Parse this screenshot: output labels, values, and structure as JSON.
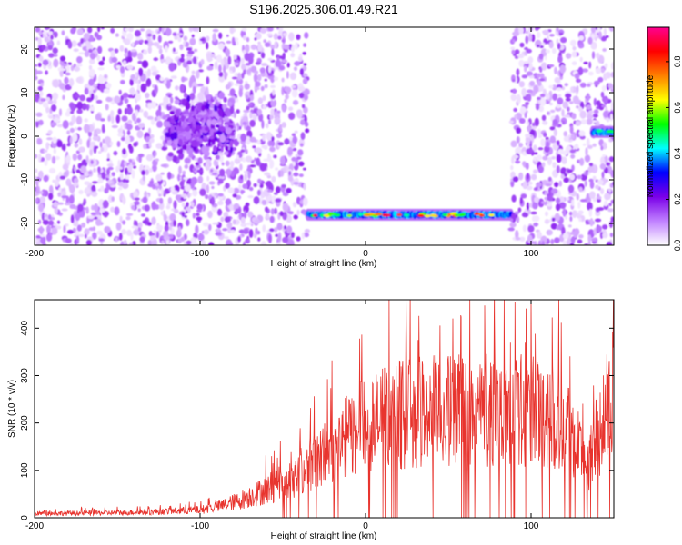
{
  "title": "S196.2025.306.01.49.R21",
  "chart_data": [
    {
      "type": "heatmap",
      "xlabel": "Height of straight line (km)",
      "ylabel": "Frequency (Hz)",
      "xlim": [
        -200,
        150
      ],
      "ylim": [
        -25,
        25
      ],
      "xticks": [
        -200,
        -100,
        0,
        100
      ],
      "yticks": [
        20,
        10,
        0,
        -10,
        -20
      ],
      "colorbar": {
        "label": "Normalized spectral amplitude",
        "range": [
          0,
          0.95
        ],
        "ticks": [
          0.0,
          0.2,
          0.4,
          0.6,
          0.8
        ],
        "colormap": [
          "#ffffff",
          "#c080ff",
          "#7a00e8",
          "#0000ff",
          "#00ffff",
          "#00ff00",
          "#ffff00",
          "#ff8000",
          "#ff0000",
          "#ff0090"
        ]
      },
      "regions": [
        {
          "desc": "scattered noise",
          "x": [
            -200,
            -35
          ],
          "freq": [
            -25,
            25
          ]
        },
        {
          "desc": "noise cluster",
          "x": [
            -120,
            -80
          ],
          "freq": [
            -5,
            10
          ]
        },
        {
          "desc": "signal band",
          "x": [
            -35,
            88
          ],
          "freq": [
            -20,
            -16
          ],
          "peak_amplitude": 0.9
        },
        {
          "desc": "scattered noise",
          "x": [
            88,
            150
          ],
          "freq": [
            -25,
            25
          ]
        },
        {
          "desc": "signal",
          "x": [
            137,
            150
          ],
          "freq": [
            0,
            2
          ],
          "peak_amplitude": 0.5
        }
      ]
    },
    {
      "type": "line",
      "xlabel": "Height of straight line (km)",
      "ylabel": "SNR (10 * v/v)",
      "xlim": [
        -200,
        150
      ],
      "ylim": [
        0,
        460
      ],
      "xticks": [
        -200,
        -100,
        0,
        100
      ],
      "yticks": [
        0,
        100,
        200,
        300,
        400
      ],
      "color": "#e8342e",
      "envelope_x": [
        -200,
        -150,
        -120,
        -100,
        -90,
        -75,
        -60,
        -45,
        -30,
        -20,
        -10,
        0,
        10,
        20,
        40,
        60,
        80,
        100,
        115,
        122,
        128,
        135,
        140,
        145,
        150
      ],
      "envelope_y": [
        12,
        14,
        18,
        22,
        30,
        50,
        80,
        110,
        160,
        200,
        230,
        260,
        275,
        290,
        300,
        300,
        305,
        300,
        290,
        270,
        210,
        150,
        230,
        300,
        320
      ]
    }
  ]
}
